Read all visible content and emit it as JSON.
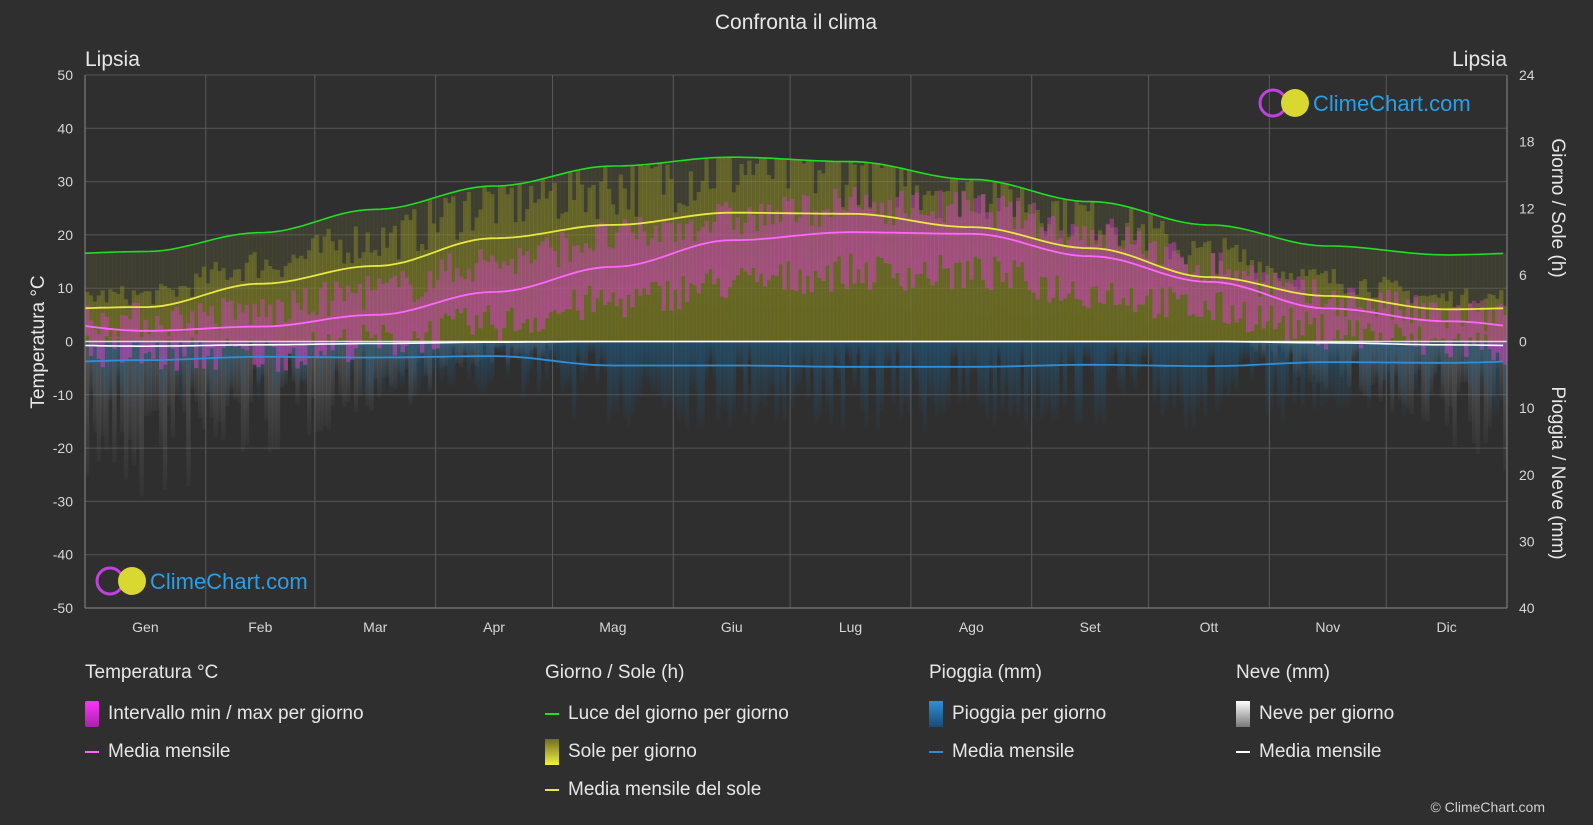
{
  "chart_data": {
    "type": "area",
    "title": "Confronta il clima",
    "location_left": "Lipsia",
    "location_right": "Lipsia",
    "months": [
      "Gen",
      "Feb",
      "Mar",
      "Apr",
      "Mag",
      "Giu",
      "Lug",
      "Ago",
      "Set",
      "Ott",
      "Nov",
      "Dic"
    ],
    "y_left": {
      "label": "Temperatura °C",
      "range": [
        -50,
        50
      ],
      "ticks": [
        50,
        40,
        30,
        20,
        10,
        0,
        -10,
        -20,
        -30,
        -40,
        -50
      ]
    },
    "y_right_top": {
      "label": "Giorno / Sole (h)",
      "range": [
        0,
        24
      ],
      "ticks": [
        24,
        18,
        12,
        6,
        0
      ]
    },
    "y_right_bottom": {
      "label": "Pioggia / Neve (mm)",
      "range": [
        0,
        40
      ],
      "ticks": [
        0,
        10,
        20,
        30,
        40
      ]
    },
    "series": {
      "temp_mean": {
        "name": "Media mensile",
        "color": "#ff66ff",
        "values": [
          2,
          2.8,
          5,
          9.3,
          14,
          19,
          20.5,
          20.2,
          16,
          11.2,
          6.2,
          3.8
        ]
      },
      "temp_max_daily": {
        "color": "#cc33cc",
        "values": [
          4,
          5.5,
          9.5,
          15,
          19.5,
          23,
          25.5,
          25,
          20.5,
          14,
          8,
          4.8
        ]
      },
      "temp_min_daily": {
        "color": "#cc33cc",
        "values": [
          -2.5,
          -2.3,
          0,
          3.5,
          7.5,
          11,
          13,
          12.8,
          9.5,
          6,
          2,
          -0.5
        ]
      },
      "daylight": {
        "name": "Luce del giorno per giorno",
        "color": "#22dd22",
        "values": [
          8.1,
          9.8,
          11.9,
          14.0,
          15.8,
          16.6,
          16.2,
          14.6,
          12.6,
          10.5,
          8.6,
          7.8
        ]
      },
      "sunshine_mean": {
        "name": "Media mensile del sole",
        "color": "#e8e840",
        "values": [
          3.1,
          5.2,
          6.8,
          9.3,
          10.5,
          11.6,
          11.5,
          10.3,
          8.4,
          5.8,
          4.1,
          2.9
        ]
      },
      "rain_mean": {
        "name": "Media mensile",
        "color": "#2e8fd8",
        "values": [
          2.8,
          2.3,
          2.4,
          2.2,
          3.6,
          3.6,
          3.8,
          3.8,
          3.5,
          3.7,
          3.1,
          3.2
        ]
      },
      "snow_mean": {
        "name": "Media mensile",
        "color": "#ffffff",
        "values": [
          0.7,
          0.5,
          0.3,
          0.1,
          0,
          0,
          0,
          0,
          0,
          0,
          0.2,
          0.5
        ]
      }
    },
    "grid": true
  },
  "legend": {
    "temp": {
      "head": "Temperatura °C",
      "range": "Intervallo min / max per giorno",
      "mean": "Media mensile"
    },
    "sun": {
      "head": "Giorno / Sole (h)",
      "daylight": "Luce del giorno per giorno",
      "sunshine": "Sole per giorno",
      "sun_mean": "Media mensile del sole"
    },
    "rain": {
      "head": "Pioggia (mm)",
      "daily": "Pioggia per giorno",
      "mean": "Media mensile"
    },
    "snow": {
      "head": "Neve (mm)",
      "daily": "Neve per giorno",
      "mean": "Media mensile"
    }
  },
  "brand": {
    "name": "ClimeChart.com",
    "copyright": "© ClimeChart.com"
  },
  "colors": {
    "background": "#2f2f2f",
    "grid": "#555555",
    "text": "#e6e6e6",
    "brand": "#2a9ee6"
  }
}
